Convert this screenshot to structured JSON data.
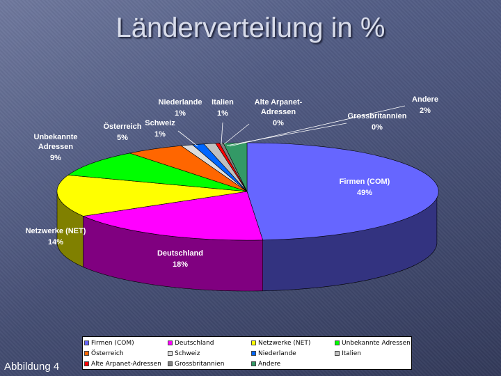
{
  "title": "Länderverteilung in %",
  "figure_label": "Abbildung 4",
  "chart_data": {
    "type": "pie",
    "categories": [
      "Firmen (COM)",
      "Deutschland",
      "Netzwerke (NET)",
      "Unbekannte Adressen",
      "Österreich",
      "Schweiz",
      "Niederlande",
      "Italien",
      "Alte Arpanet-Adressen",
      "Grossbritannien",
      "Andere"
    ],
    "values": [
      49,
      18,
      14,
      9,
      5,
      1,
      1,
      1,
      0,
      0,
      2
    ],
    "value_labels": [
      "49%",
      "18%",
      "14%",
      "9%",
      "5%",
      "1%",
      "1%",
      "1%",
      "0%",
      "0%",
      "2%"
    ],
    "colors": [
      "#6666ff",
      "#ff00ff",
      "#ffff00",
      "#00ff00",
      "#ff6600",
      "#dddddd",
      "#0066ff",
      "#c0c0c0",
      "#ff0000",
      "#808080",
      "#339966"
    ],
    "legend_placement": "bottom"
  },
  "slice_labels": [
    {
      "name": "Firmen (COM)",
      "pct": "49%"
    },
    {
      "name": "Deutschland",
      "pct": "18%"
    },
    {
      "name": "Netzwerke (NET)",
      "pct": "14%"
    },
    {
      "name": "Unbekannte\nAdressen",
      "pct": "9%"
    },
    {
      "name": "Österreich",
      "pct": "5%"
    },
    {
      "name": "Schweiz",
      "pct": "1%"
    },
    {
      "name": "Niederlande",
      "pct": "1%"
    },
    {
      "name": "Italien",
      "pct": "1%"
    },
    {
      "name": "Alte Arpanet-\nAdressen",
      "pct": "0%"
    },
    {
      "name": "Grossbritannien",
      "pct": "0%"
    },
    {
      "name": "Andere",
      "pct": "2%"
    }
  ],
  "legend": [
    {
      "label": "Firmen (COM)",
      "color": "#6666ff"
    },
    {
      "label": "Deutschland",
      "color": "#ff00ff"
    },
    {
      "label": "Netzwerke (NET)",
      "color": "#ffff00"
    },
    {
      "label": "Unbekannte Adressen",
      "color": "#00ff00"
    },
    {
      "label": "Österreich",
      "color": "#ff6600"
    },
    {
      "label": "Schweiz",
      "color": "#dddddd"
    },
    {
      "label": "Niederlande",
      "color": "#0066ff"
    },
    {
      "label": "Italien",
      "color": "#c0c0c0"
    },
    {
      "label": "Alte Arpanet-Adressen",
      "color": "#ff0000"
    },
    {
      "label": "Grossbritannien",
      "color": "#808080"
    },
    {
      "label": "Andere",
      "color": "#339966"
    }
  ]
}
